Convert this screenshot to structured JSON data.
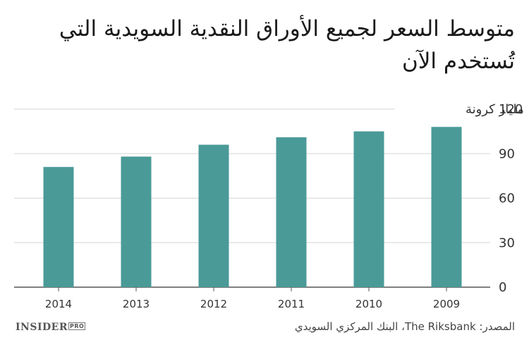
{
  "title": "متوسط السعر لجميع الأوراق النقدية السويدية التي تُستخدم الآن",
  "footer": {
    "logo": "INSIDER",
    "logo_badge": "PRO",
    "source": "المصدر: The Riksbank، البنك المركزي السويدي"
  },
  "chart_data": {
    "type": "bar",
    "title": "متوسط السعر لجميع الأوراق النقدية السويدية التي تُستخدم الآن",
    "categories": [
      "2014",
      "2013",
      "2012",
      "2011",
      "2010",
      "2009"
    ],
    "values": [
      81,
      88,
      96,
      101,
      105,
      108
    ],
    "unit_label": "مليار كرونة",
    "y_ticks": [
      0,
      30,
      60,
      90,
      120
    ],
    "ylim": [
      0,
      120
    ],
    "y_axis_side": "right",
    "grid": true,
    "legend": false,
    "bar_color": "#4a9a98"
  }
}
